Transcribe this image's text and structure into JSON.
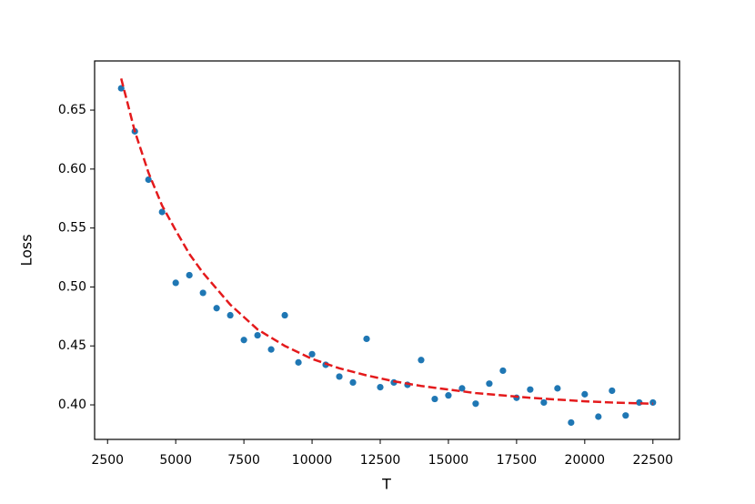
{
  "chart_data": {
    "type": "scatter",
    "x_label": "T",
    "y_label": "Loss",
    "xlim": [
      2025,
      23475
    ],
    "ylim": [
      0.3707,
      0.6917
    ],
    "xticks": [
      2500,
      5000,
      7500,
      10000,
      12500,
      15000,
      17500,
      20000,
      22500
    ],
    "yticks": [
      {
        "value": 0.4,
        "label": "0.40"
      },
      0.45,
      {
        "value": 0.5,
        "label": "0.50"
      },
      0.55,
      {
        "value": 0.6,
        "label": "0.60"
      },
      0.65
    ],
    "series": [
      {
        "kind": "points",
        "color": "#1f77b4",
        "x": [
          3000,
          3500,
          4000,
          4500,
          5000,
          5500,
          6000,
          6500,
          7000,
          7500,
          8000,
          8500,
          9000,
          9500,
          10000,
          10500,
          11000,
          11500,
          12000,
          12500,
          13000,
          13500,
          14000,
          14500,
          15000,
          15500,
          16000,
          16500,
          17000,
          17500,
          18000,
          18500,
          19000,
          19500,
          20000,
          20500,
          21000,
          21500,
          22000,
          22500
        ],
        "values": [
          0.6685,
          0.632,
          0.591,
          0.5636,
          0.5035,
          0.51,
          0.495,
          0.482,
          0.476,
          0.455,
          0.459,
          0.447,
          0.476,
          0.436,
          0.443,
          0.434,
          0.424,
          0.419,
          0.456,
          0.415,
          0.419,
          0.417,
          0.438,
          0.405,
          0.408,
          0.414,
          0.401,
          0.418,
          0.429,
          0.406,
          0.413,
          0.402,
          0.414,
          0.385,
          0.409,
          0.39,
          0.412,
          0.391,
          0.402,
          0.402
        ]
      },
      {
        "kind": "dashed-line",
        "color": "#e41a1c",
        "x": [
          3000,
          3500,
          4000,
          4500,
          5000,
          5500,
          6000,
          7000,
          8000,
          9000,
          10000,
          11000,
          12000,
          13000,
          14000,
          15000,
          16000,
          17000,
          18000,
          19000,
          20000,
          21000,
          22500
        ],
        "values": [
          0.6768,
          0.632,
          0.597,
          0.569,
          0.548,
          0.528,
          0.512,
          0.485,
          0.464,
          0.45,
          0.439,
          0.431,
          0.425,
          0.42,
          0.416,
          0.413,
          0.41,
          0.408,
          0.406,
          0.4045,
          0.403,
          0.402,
          0.401
        ]
      }
    ]
  }
}
